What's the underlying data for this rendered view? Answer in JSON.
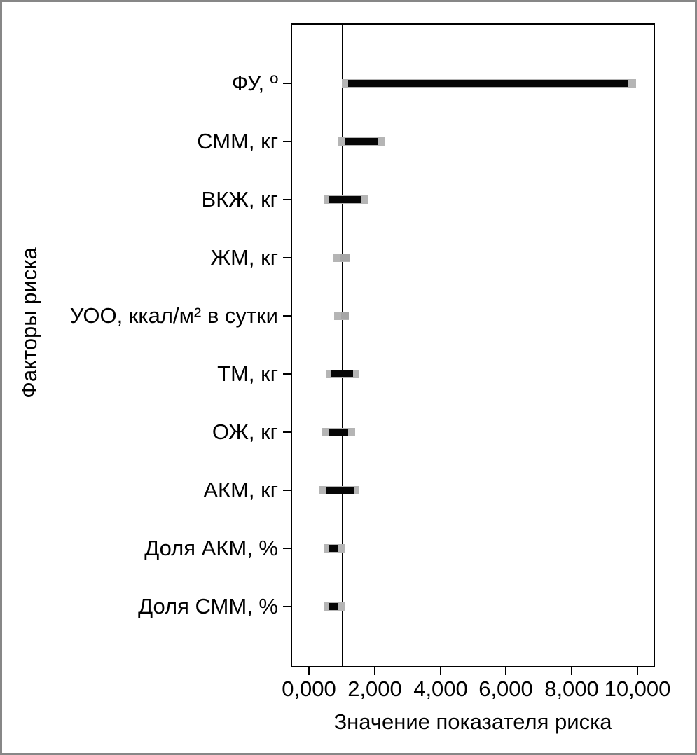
{
  "frame": {
    "background": "#ffffff",
    "border_color": "#878787"
  },
  "chart_data": {
    "type": "bar",
    "orientation": "horizontal-interval",
    "title": "",
    "xlabel": "Значение показателя риска",
    "ylabel": "Факторы риска",
    "xlim": [
      0,
      10
    ],
    "x_ticks": [
      0,
      2,
      4,
      6,
      8,
      10
    ],
    "x_tick_labels": [
      "0,000",
      "2,000",
      "4,000",
      "6,000",
      "8,000",
      "10,000"
    ],
    "reference_line_x": 1.0,
    "grid": false,
    "legend": false,
    "categories": [
      "ФУ, º",
      "СММ, кг",
      "ВКЖ, кг",
      "ЖМ, кг",
      "УОО, ккал/м² в сутки",
      "ТМ, кг",
      "ОЖ, кг",
      "АКМ, кг",
      "Доля АКМ, %",
      "Доля СММ, %"
    ],
    "series": [
      {
        "name": "whisker-range-gray",
        "ranges": [
          [
            1.0,
            9.95
          ],
          [
            0.87,
            2.3
          ],
          [
            0.45,
            1.79
          ],
          [
            0.73,
            1.26
          ],
          [
            0.77,
            1.22
          ],
          [
            0.51,
            1.54
          ],
          [
            0.38,
            1.41
          ],
          [
            0.3,
            1.51
          ],
          [
            0.45,
            1.11
          ],
          [
            0.45,
            1.11
          ]
        ]
      },
      {
        "name": "main-range-black",
        "ranges": [
          [
            1.2,
            9.72
          ],
          [
            1.11,
            2.11
          ],
          [
            0.62,
            1.6
          ],
          null,
          null,
          [
            0.68,
            1.34
          ],
          [
            0.6,
            1.19
          ],
          [
            0.51,
            1.36
          ],
          [
            0.62,
            0.9
          ],
          [
            0.6,
            0.9
          ]
        ]
      },
      {
        "name": "mid-range-darker-gray",
        "ranges": [
          null,
          null,
          null,
          [
            0.94,
            1.26
          ],
          [
            0.98,
            1.22
          ],
          null,
          null,
          null,
          null,
          null
        ]
      }
    ],
    "colors": {
      "black_bar": "#060606",
      "gray_whisker": "#b5b5b5",
      "gray_mid": "#a6a6a6",
      "reference_line": "#000000",
      "axis": "#000000"
    }
  }
}
